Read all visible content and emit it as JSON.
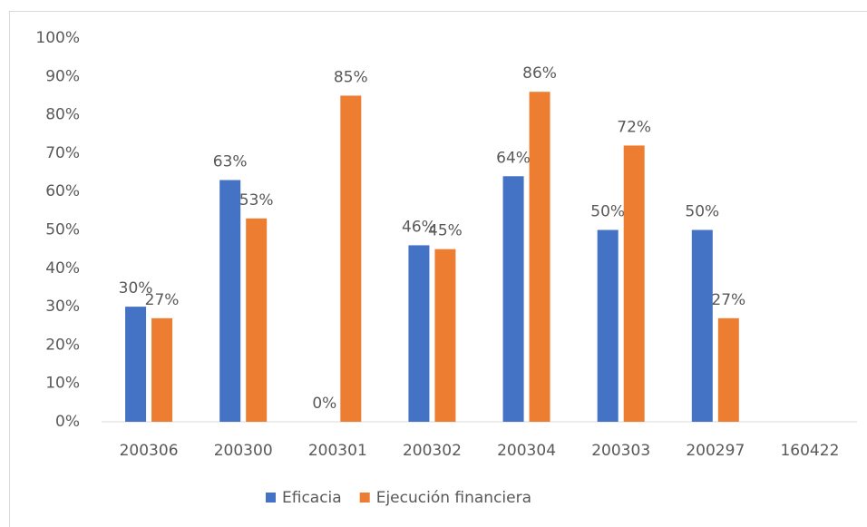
{
  "chart_data": {
    "type": "bar",
    "categories": [
      "200306",
      "200300",
      "200301",
      "200302",
      "200304",
      "200303",
      "200297",
      "160422"
    ],
    "series": [
      {
        "name": "Eficacia",
        "color": "#4472c4",
        "values": [
          30,
          63,
          0,
          46,
          64,
          50,
          50,
          null
        ],
        "value_labels": [
          "30%",
          "63%",
          "0%",
          "46%",
          "64%",
          "50%",
          "50%",
          null
        ]
      },
      {
        "name": "Ejecución financiera",
        "color": "#ed7d31",
        "values": [
          27,
          53,
          85,
          45,
          86,
          72,
          27,
          null
        ],
        "value_labels": [
          "27%",
          "53%",
          "85%",
          "45%",
          "86%",
          "72%",
          "27%",
          null
        ]
      }
    ],
    "ylim": [
      0,
      100
    ],
    "yticks": [
      {
        "value": 0,
        "label": "0%"
      },
      {
        "value": 10,
        "label": "10%"
      },
      {
        "value": 20,
        "label": "20%"
      },
      {
        "value": 30,
        "label": "30%"
      },
      {
        "value": 40,
        "label": "40%"
      },
      {
        "value": 50,
        "label": "50%"
      },
      {
        "value": 60,
        "label": "60%"
      },
      {
        "value": 70,
        "label": "70%"
      },
      {
        "value": 80,
        "label": "80%"
      },
      {
        "value": 90,
        "label": "90%"
      },
      {
        "value": 100,
        "label": "100%"
      }
    ],
    "grid": false,
    "legend": "bottom"
  }
}
